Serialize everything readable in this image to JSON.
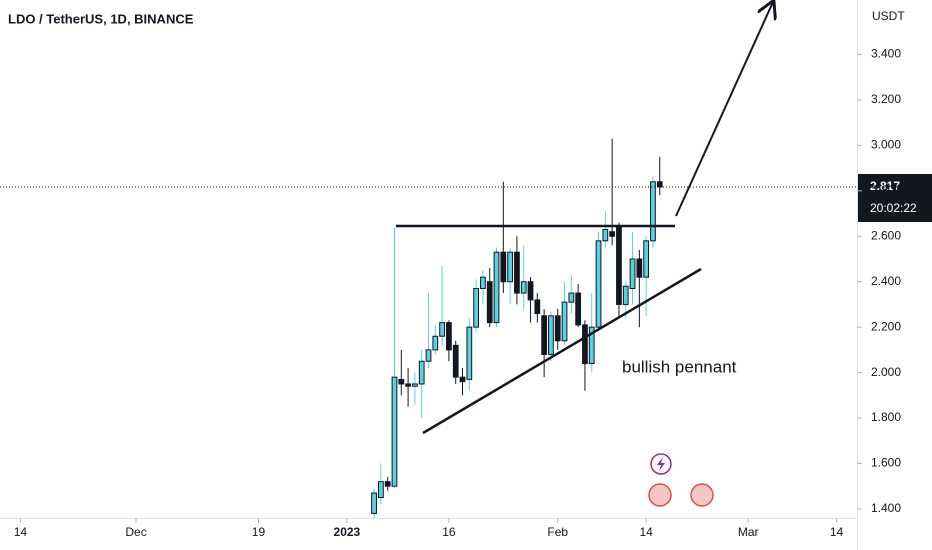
{
  "chart_data": {
    "type": "candlestick",
    "title": "LDO / TetherUS, 1D, BINANCE",
    "y_axis_label": "USDT",
    "annotation": "bullish pennant",
    "last_price": 2.817,
    "countdown": "20:02:22",
    "up_color": "#5ccfe0",
    "down_color": "#131722",
    "x": [
      "2023-01-05",
      "2023-01-06",
      "2023-01-07",
      "2023-01-08",
      "2023-01-09",
      "2023-01-10",
      "2023-01-11",
      "2023-01-12",
      "2023-01-13",
      "2023-01-14",
      "2023-01-15",
      "2023-01-16",
      "2023-01-17",
      "2023-01-18",
      "2023-01-19",
      "2023-01-20",
      "2023-01-21",
      "2023-01-22",
      "2023-01-23",
      "2023-01-24",
      "2023-01-25",
      "2023-01-26",
      "2023-01-27",
      "2023-01-28",
      "2023-01-29",
      "2023-01-30",
      "2023-01-31",
      "2023-02-01",
      "2023-02-02",
      "2023-02-03",
      "2023-02-04",
      "2023-02-05",
      "2023-02-06",
      "2023-02-07",
      "2023-02-08",
      "2023-02-09",
      "2023-02-10",
      "2023-02-11",
      "2023-02-12",
      "2023-02-13",
      "2023-02-14",
      "2023-02-15",
      "2023-02-16"
    ],
    "open": [
      1.38,
      1.45,
      1.52,
      1.5,
      1.97,
      1.95,
      1.94,
      1.95,
      2.05,
      2.1,
      2.16,
      2.22,
      2.12,
      1.98,
      1.97,
      2.2,
      2.37,
      2.4,
      2.22,
      2.53,
      2.4,
      2.53,
      2.35,
      2.4,
      2.32,
      2.25,
      2.08,
      2.25,
      2.14,
      2.31,
      2.35,
      2.21,
      2.04,
      2.2,
      2.58,
      2.62,
      2.64,
      2.3,
      2.37,
      2.5,
      2.42,
      2.58,
      2.84
    ],
    "high": [
      1.49,
      1.6,
      1.54,
      2.64,
      2.1,
      2.02,
      2.0,
      2.1,
      2.35,
      2.21,
      2.47,
      2.23,
      2.14,
      2.02,
      2.24,
      2.41,
      2.45,
      2.46,
      2.55,
      2.84,
      2.55,
      2.6,
      2.56,
      2.42,
      2.35,
      2.28,
      2.27,
      2.28,
      2.4,
      2.43,
      2.39,
      2.23,
      2.35,
      2.62,
      2.71,
      3.03,
      2.66,
      2.4,
      2.62,
      2.54,
      2.6,
      2.86,
      2.95
    ],
    "low": [
      1.36,
      1.42,
      1.48,
      1.49,
      1.9,
      1.85,
      1.86,
      1.8,
      2.02,
      2.08,
      2.12,
      2.05,
      1.95,
      1.9,
      1.92,
      2.18,
      2.3,
      2.2,
      2.2,
      2.35,
      2.3,
      2.3,
      2.28,
      2.22,
      2.22,
      1.98,
      2.05,
      2.1,
      2.12,
      2.26,
      2.2,
      1.92,
      2.0,
      2.18,
      2.55,
      2.56,
      2.25,
      2.24,
      2.3,
      2.2,
      2.25,
      2.55,
      2.78
    ],
    "close": [
      1.47,
      1.52,
      1.5,
      1.98,
      1.95,
      1.94,
      1.95,
      2.05,
      2.1,
      2.16,
      2.22,
      2.1,
      1.98,
      1.96,
      2.2,
      2.37,
      2.42,
      2.22,
      2.53,
      2.4,
      2.53,
      2.35,
      2.4,
      2.32,
      2.26,
      2.08,
      2.25,
      2.14,
      2.31,
      2.35,
      2.21,
      2.04,
      2.2,
      2.58,
      2.63,
      2.6,
      2.3,
      2.38,
      2.5,
      2.42,
      2.58,
      2.84,
      2.817
    ],
    "xlim": [
      "2022-11-11",
      "2023-03-17"
    ],
    "xticks": [
      {
        "value": "2022-11-14",
        "label": "14"
      },
      {
        "value": "2022-12-01",
        "label": "Dec"
      },
      {
        "value": "2022-12-19",
        "label": "19"
      },
      {
        "value": "2023-01-01",
        "label": "2023"
      },
      {
        "value": "2023-01-16",
        "label": "16"
      },
      {
        "value": "2023-02-01",
        "label": "Feb"
      },
      {
        "value": "2023-02-14",
        "label": "14"
      },
      {
        "value": "2023-03-01",
        "label": "Mar"
      },
      {
        "value": "2023-03-14",
        "label": "14"
      }
    ],
    "ylim": [
      1.36,
      3.64
    ],
    "yticks": [
      {
        "value": 1.4,
        "label": "1.400"
      },
      {
        "value": 1.6,
        "label": "1.600"
      },
      {
        "value": 1.8,
        "label": "1.800"
      },
      {
        "value": 2.0,
        "label": "2.000"
      },
      {
        "value": 2.2,
        "label": "2.200"
      },
      {
        "value": 2.4,
        "label": "2.400"
      },
      {
        "value": 2.6,
        "label": "2.600"
      },
      {
        "value": 2.8,
        "label": "2.800"
      },
      {
        "value": 3.0,
        "label": "3.000"
      },
      {
        "value": 3.2,
        "label": "3.200"
      },
      {
        "value": 3.4,
        "label": "3.400"
      }
    ]
  }
}
